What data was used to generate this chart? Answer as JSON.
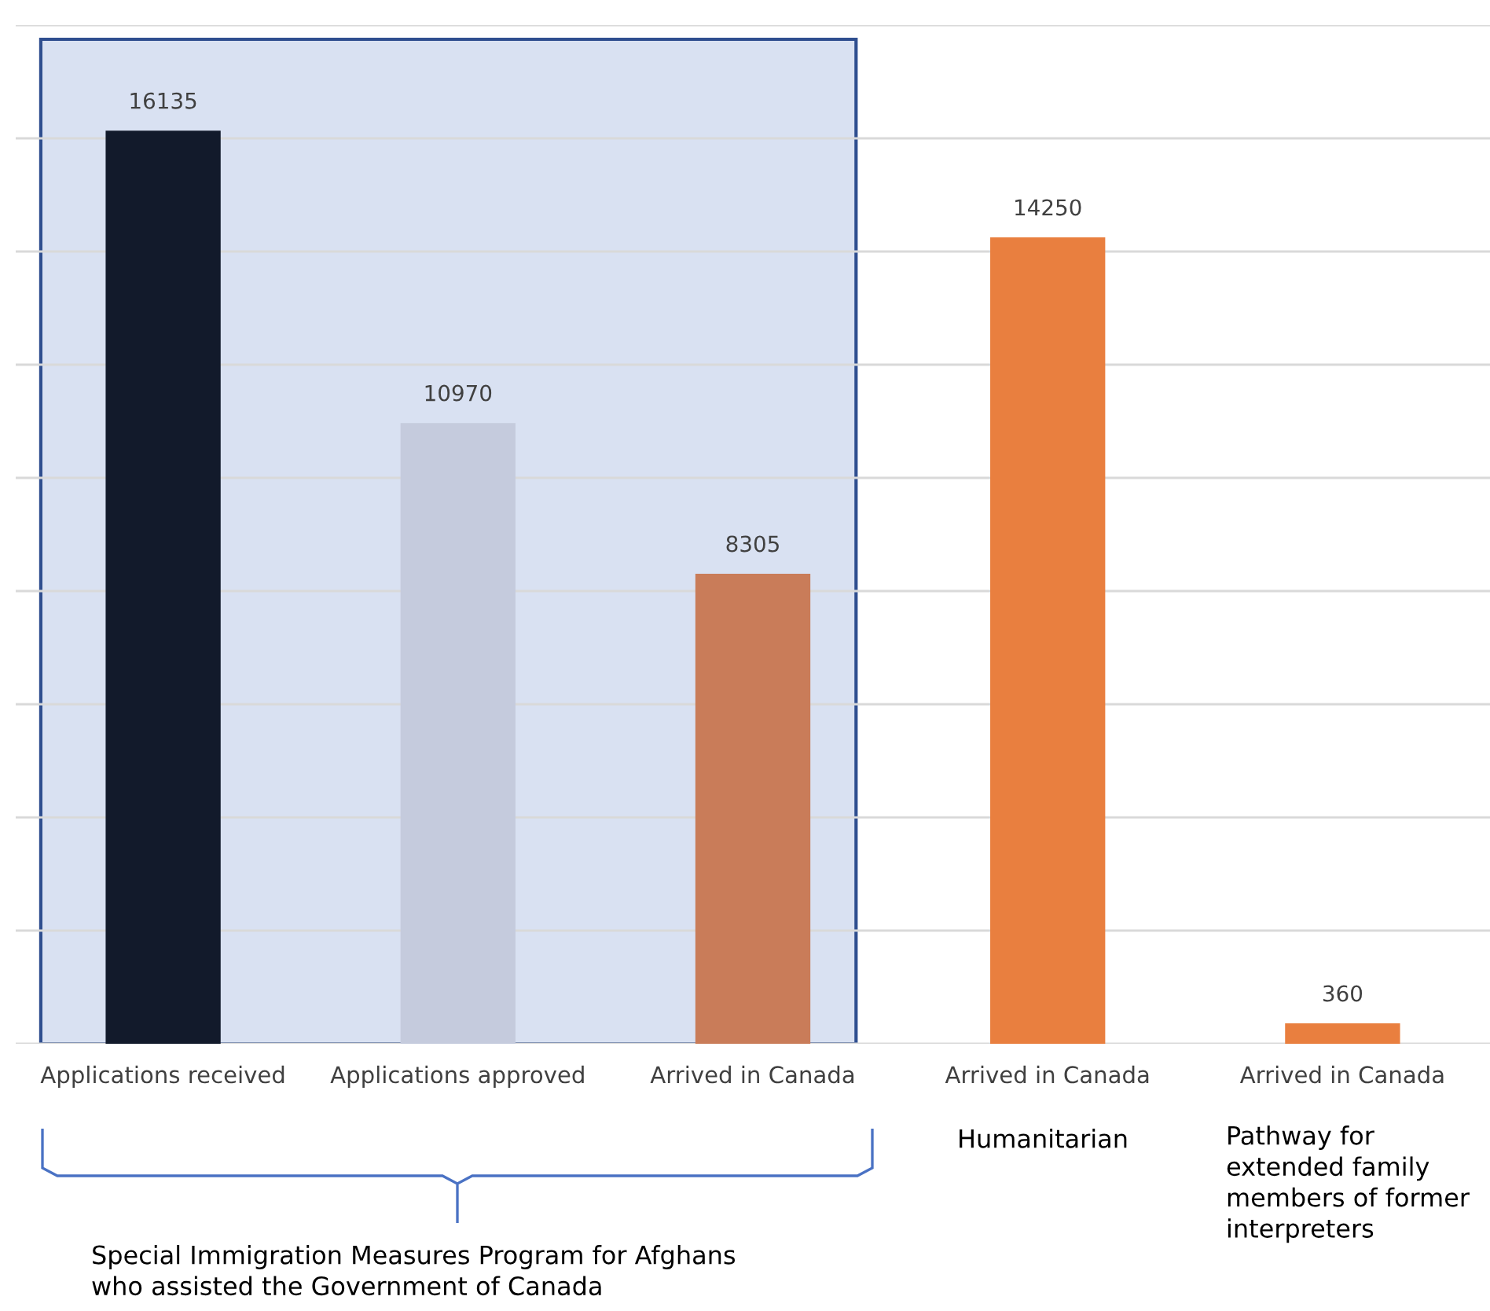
{
  "chart_data": {
    "type": "bar",
    "categories": [
      "Applications received",
      "Applications approved",
      "Arrived in Canada",
      "Arrived in Canada",
      "Arrived in Canada"
    ],
    "values": [
      16135,
      10970,
      8305,
      14250,
      360
    ],
    "colors": [
      "#121a2b",
      "#c5cbdd",
      "#c97c59",
      "#e97f3f",
      "#e97f3f"
    ],
    "ylim": [
      0,
      18000
    ],
    "yticks": [
      {
        "value": 0,
        "label": null
      },
      {
        "value": 2000,
        "label": null
      },
      {
        "value": 4000,
        "label": null
      },
      {
        "value": 6000,
        "label": null
      },
      {
        "value": 8000,
        "label": null
      },
      {
        "value": 10000,
        "label": null
      },
      {
        "value": 12000,
        "label": null
      },
      {
        "value": 14000,
        "label": null
      },
      {
        "value": 16000,
        "label": null
      },
      {
        "value": 18000,
        "label": null
      }
    ],
    "grid": "y",
    "data_labels": true,
    "tick_labels": "x",
    "annotations": [
      "Special Immigration Measures Program for Afghans\nwho assisted the Government of Canada",
      "Humanitarian",
      "Pathway for\nextended family\nmembers of former\ninterpreters"
    ]
  }
}
